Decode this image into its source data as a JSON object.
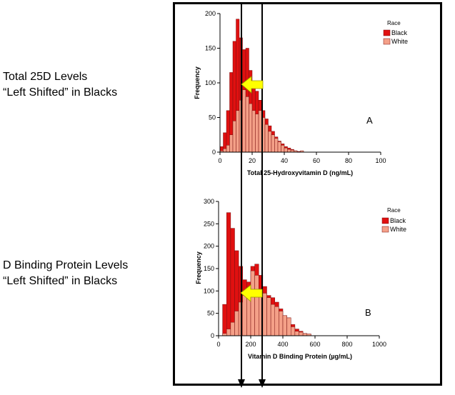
{
  "side_labels": {
    "top_line1": "Total 25D Levels",
    "top_line2": "“Left Shifted” in Blacks",
    "bottom_line1": "D Binding Protein Levels",
    "bottom_line2": "“Left Shifted” in Blacks"
  },
  "colors": {
    "black_race": "#e01010",
    "white_race": "#f4a088",
    "bar_edge": "#7a1010",
    "arrow": "#ffff00"
  },
  "icons": [
    "left-arrow-icon",
    "down-arrow-icon"
  ],
  "chart_data": [
    {
      "type": "bar",
      "id": "top",
      "title": "",
      "panel_label": "A",
      "xlabel": "Total 25-Hydroxyvitamin D (ng/mL)",
      "ylabel": "Frequency",
      "xlim": [
        0,
        100
      ],
      "ylim": [
        0,
        200
      ],
      "xticks": [
        "0",
        "20",
        "40",
        "60",
        "80",
        "100"
      ],
      "yticks": [
        "0",
        "50",
        "100",
        "150",
        "200"
      ],
      "legend_title": "Race",
      "legend": [
        "Black",
        "White"
      ],
      "bin_width": 2,
      "bin_start": 0,
      "series": [
        {
          "name": "Black",
          "values": [
            8,
            28,
            60,
            115,
            160,
            192,
            165,
            148,
            150,
            118,
            102,
            88,
            75,
            60,
            48,
            38,
            30,
            22,
            16,
            12,
            8,
            6,
            4,
            2,
            1,
            0,
            0,
            0,
            0,
            0
          ]
        },
        {
          "name": "White",
          "values": [
            2,
            5,
            10,
            25,
            45,
            60,
            75,
            90,
            80,
            70,
            60,
            55,
            60,
            50,
            40,
            30,
            25,
            20,
            15,
            10,
            6,
            4,
            3,
            2,
            0,
            2,
            0,
            0,
            0,
            0
          ]
        }
      ]
    },
    {
      "type": "bar",
      "id": "bottom",
      "title": "",
      "panel_label": "B",
      "xlabel": "Vitamin D Binding Protein (µg/mL)",
      "ylabel": "Frequency",
      "xlim": [
        0,
        1000
      ],
      "ylim": [
        0,
        300
      ],
      "xticks": [
        "0",
        "200",
        "400",
        "600",
        "800",
        "1000"
      ],
      "yticks": [
        "0",
        "50",
        "100",
        "150",
        "200",
        "250",
        "300"
      ],
      "legend_title": "Race",
      "legend": [
        "Black",
        "White"
      ],
      "bin_width": 25,
      "bin_start": 25,
      "series": [
        {
          "name": "Black",
          "values": [
            70,
            275,
            240,
            190,
            155,
            125,
            120,
            155,
            160,
            135,
            110,
            90,
            85,
            75,
            60,
            45,
            40,
            25,
            15,
            10,
            5,
            3
          ]
        },
        {
          "name": "White",
          "values": [
            5,
            15,
            30,
            55,
            75,
            90,
            100,
            145,
            135,
            105,
            95,
            85,
            70,
            65,
            55,
            45,
            40,
            20,
            10,
            8,
            5,
            4
          ]
        }
      ]
    }
  ]
}
